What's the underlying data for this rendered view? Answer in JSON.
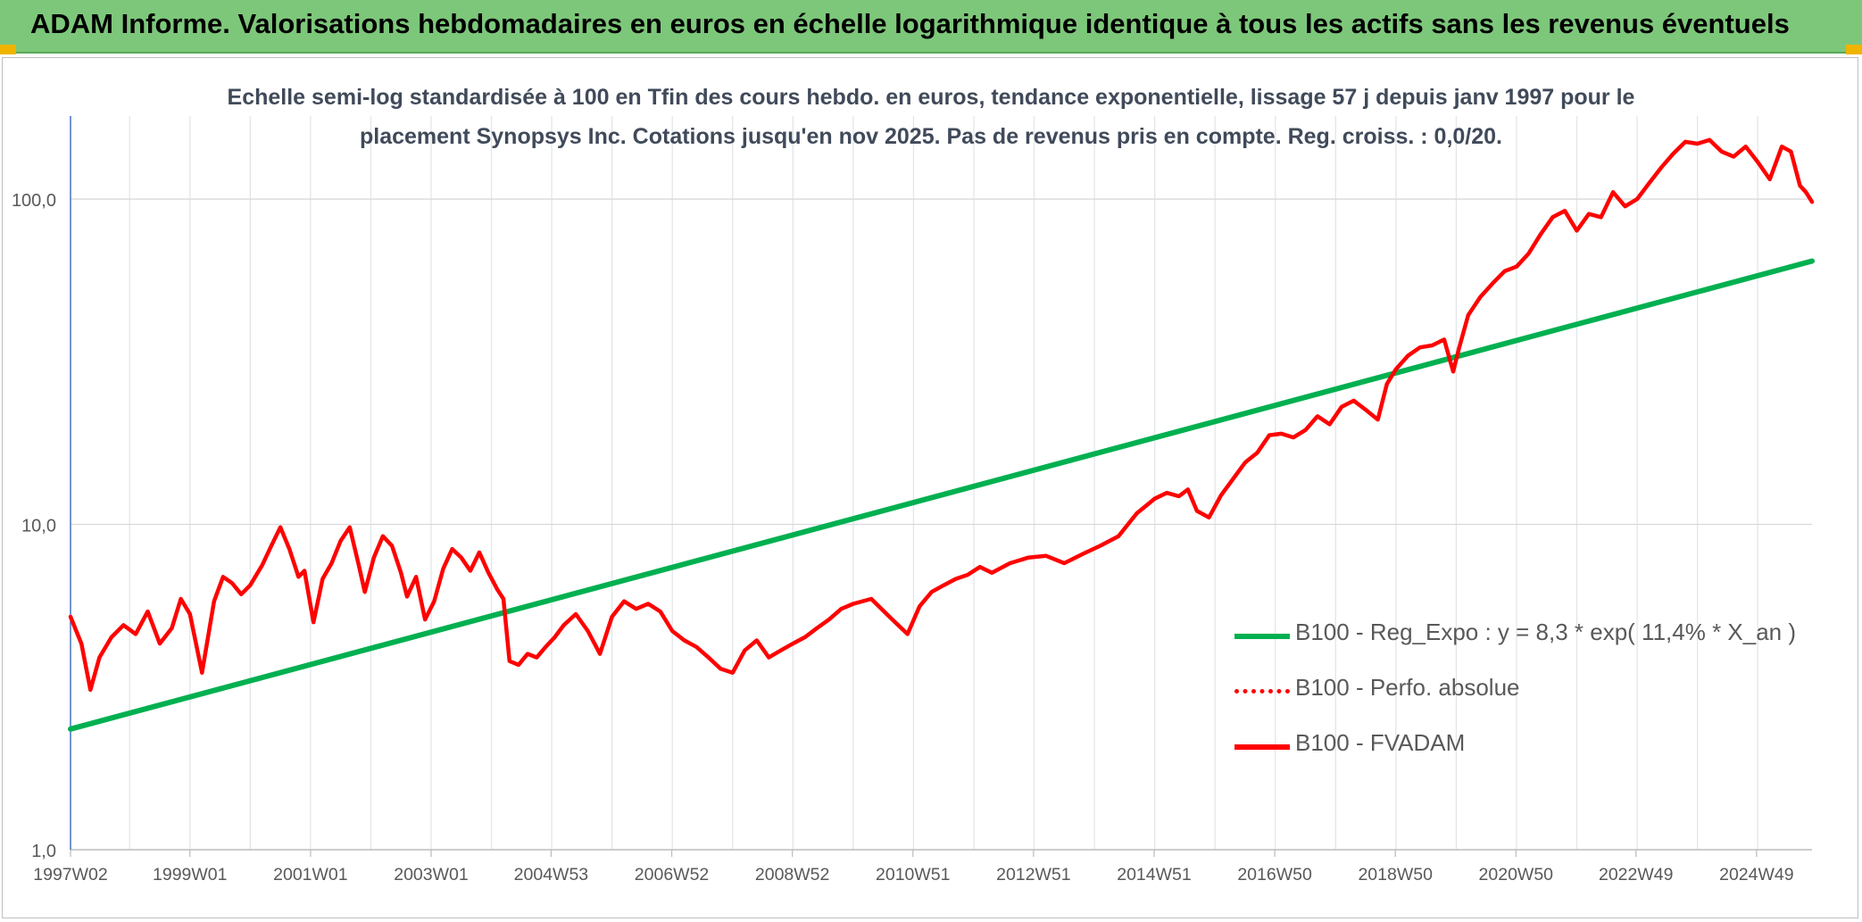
{
  "banner": {
    "title": "ADAM Informe. Valorisations hebdomadaires en euros en échelle logarithmique identique à tous les actifs sans les revenus éventuels"
  },
  "colors": {
    "banner_bg": "#7dc77a",
    "regression_line": "#00b050",
    "fvadam_line": "#ff0000",
    "corner_accent": "#f0b400"
  },
  "chart_data": {
    "type": "line",
    "title": "Echelle semi-log standardisée à 100 en Tfin des cours hebdo. en euros, tendance exponentielle, lissage 57 j depuis janv 1997 pour le placement Synopsys Inc. Cotations jusqu'en nov 2025. Pas de revenus pris en compte. Reg. croiss. : 0,0/20.",
    "y_scale": "log",
    "ylim": [
      1,
      180
    ],
    "y_ticks": [
      {
        "value": 1,
        "label": "1,0"
      },
      {
        "value": 10,
        "label": "10,0"
      },
      {
        "value": 100,
        "label": "100,0"
      }
    ],
    "xlim": [
      1997.02,
      2025.9
    ],
    "x_ticks": [
      {
        "value": 1997.02,
        "label": "1997W02"
      },
      {
        "value": 1999.0,
        "label": "1999W01"
      },
      {
        "value": 2001.0,
        "label": "2001W01"
      },
      {
        "value": 2003.0,
        "label": "2003W01"
      },
      {
        "value": 2004.99,
        "label": "2004W53"
      },
      {
        "value": 2006.99,
        "label": "2006W52"
      },
      {
        "value": 2008.99,
        "label": "2008W52"
      },
      {
        "value": 2010.99,
        "label": "2010W51"
      },
      {
        "value": 2012.99,
        "label": "2012W51"
      },
      {
        "value": 2014.99,
        "label": "2014W51"
      },
      {
        "value": 2016.99,
        "label": "2016W50"
      },
      {
        "value": 2018.99,
        "label": "2018W50"
      },
      {
        "value": 2020.99,
        "label": "2020W50"
      },
      {
        "value": 2022.98,
        "label": "2022W49"
      },
      {
        "value": 2024.98,
        "label": "2024W49"
      }
    ],
    "grid": true,
    "legend_position": "right",
    "legend": [
      {
        "label": "B100 - Reg_Expo : y = 8,3 * exp( 11,4% *  X_an )",
        "style": "solid",
        "color": "#00b050"
      },
      {
        "label": "B100 - Perfo. absolue",
        "style": "dotted",
        "color": "#ff0000"
      },
      {
        "label": "B100 - FVADAM",
        "style": "solid",
        "color": "#ff0000"
      }
    ],
    "series": [
      {
        "name": "B100 - Reg_Expo : y = 8,3 * exp( 11,4% *  X_an )",
        "color": "#00b050",
        "x": [
          1997.02,
          2025.9
        ],
        "y": [
          2.35,
          64.5
        ]
      },
      {
        "name": "B100 - FVADAM",
        "color": "#ff0000",
        "x": [
          1997.02,
          1997.2,
          1997.35,
          1997.5,
          1997.7,
          1997.9,
          1998.1,
          1998.3,
          1998.5,
          1998.7,
          1998.85,
          1999.0,
          1999.2,
          1999.4,
          1999.55,
          1999.7,
          1999.85,
          2000.0,
          2000.2,
          2000.35,
          2000.5,
          2000.65,
          2000.8,
          2000.9,
          2001.05,
          2001.2,
          2001.35,
          2001.5,
          2001.65,
          2001.8,
          2001.9,
          2002.05,
          2002.2,
          2002.35,
          2002.5,
          2002.6,
          2002.75,
          2002.9,
          2003.05,
          2003.2,
          2003.35,
          2003.5,
          2003.65,
          2003.8,
          2003.95,
          2004.1,
          2004.2,
          2004.3,
          2004.45,
          2004.6,
          2004.75,
          2004.9,
          2005.05,
          2005.2,
          2005.4,
          2005.6,
          2005.8,
          2006.0,
          2006.2,
          2006.4,
          2006.6,
          2006.8,
          2007.0,
          2007.2,
          2007.4,
          2007.6,
          2007.8,
          2008.0,
          2008.2,
          2008.4,
          2008.6,
          2008.8,
          2009.0,
          2009.2,
          2009.4,
          2009.6,
          2009.8,
          2010.0,
          2010.3,
          2010.6,
          2010.9,
          2011.1,
          2011.3,
          2011.5,
          2011.7,
          2011.9,
          2012.1,
          2012.3,
          2012.6,
          2012.9,
          2013.2,
          2013.5,
          2013.8,
          2014.1,
          2014.4,
          2014.7,
          2015.0,
          2015.2,
          2015.4,
          2015.55,
          2015.7,
          2015.9,
          2016.1,
          2016.3,
          2016.5,
          2016.7,
          2016.9,
          2017.1,
          2017.3,
          2017.5,
          2017.7,
          2017.9,
          2018.1,
          2018.3,
          2018.5,
          2018.7,
          2018.85,
          2019.0,
          2019.2,
          2019.4,
          2019.6,
          2019.8,
          2019.95,
          2020.05,
          2020.2,
          2020.4,
          2020.6,
          2020.8,
          2021.0,
          2021.2,
          2021.4,
          2021.6,
          2021.8,
          2022.0,
          2022.2,
          2022.4,
          2022.6,
          2022.8,
          2023.0,
          2023.2,
          2023.4,
          2023.6,
          2023.8,
          2024.0,
          2024.2,
          2024.4,
          2024.6,
          2024.8,
          2025.0,
          2025.2,
          2025.4,
          2025.55,
          2025.7,
          2025.8,
          2025.9
        ],
        "y": [
          5.2,
          4.3,
          3.1,
          3.9,
          4.5,
          4.9,
          4.6,
          5.4,
          4.3,
          4.8,
          5.9,
          5.3,
          3.5,
          5.8,
          6.9,
          6.6,
          6.1,
          6.5,
          7.5,
          8.6,
          9.8,
          8.4,
          6.9,
          7.2,
          5.0,
          6.8,
          7.6,
          8.9,
          9.8,
          7.5,
          6.2,
          7.9,
          9.2,
          8.6,
          7.1,
          6.0,
          6.9,
          5.1,
          5.8,
          7.3,
          8.4,
          7.9,
          7.2,
          8.2,
          7.1,
          6.3,
          5.9,
          3.8,
          3.7,
          4.0,
          3.9,
          4.2,
          4.5,
          4.9,
          5.3,
          4.7,
          4.0,
          5.2,
          5.8,
          5.5,
          5.7,
          5.4,
          4.7,
          4.4,
          4.2,
          3.9,
          3.6,
          3.5,
          4.1,
          4.4,
          3.9,
          4.1,
          4.3,
          4.5,
          4.8,
          5.1,
          5.5,
          5.7,
          5.9,
          5.2,
          4.6,
          5.6,
          6.2,
          6.5,
          6.8,
          7.0,
          7.4,
          7.1,
          7.6,
          7.9,
          8.0,
          7.6,
          8.1,
          8.6,
          9.2,
          10.8,
          12.0,
          12.5,
          12.2,
          12.8,
          11.0,
          10.5,
          12.3,
          13.8,
          15.5,
          16.6,
          18.8,
          19.0,
          18.5,
          19.5,
          21.5,
          20.3,
          23.0,
          24.0,
          22.5,
          21.0,
          27.0,
          30.0,
          33.0,
          35.0,
          35.5,
          37.0,
          29.5,
          35.0,
          44.0,
          50.0,
          55.0,
          60.0,
          62.0,
          68.0,
          78.0,
          88.0,
          92.0,
          80.0,
          90.0,
          88.0,
          105.0,
          95.0,
          100.0,
          112.0,
          125.0,
          138.0,
          150.0,
          148.0,
          152.0,
          140.0,
          135.0,
          145.0,
          130.0,
          115.0,
          145.0,
          140.0,
          110.0,
          105.0,
          98.0
        ]
      }
    ]
  }
}
